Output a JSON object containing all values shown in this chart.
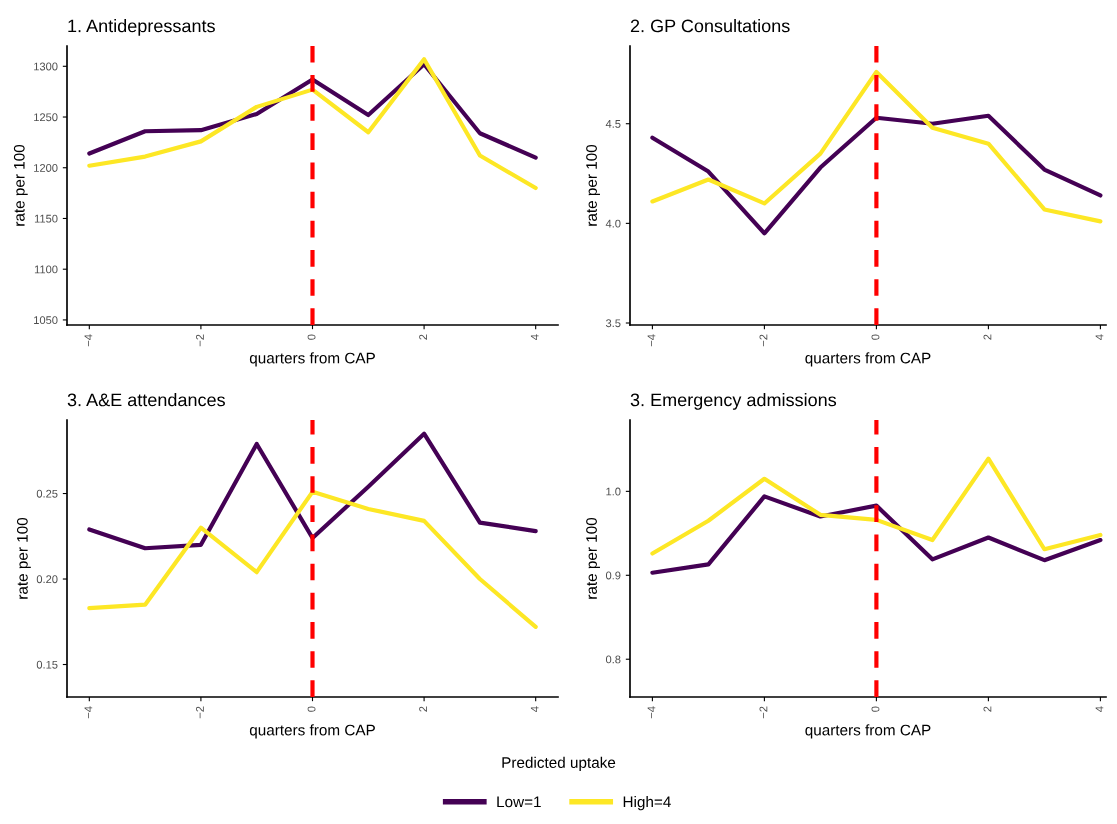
{
  "chart_data": [
    {
      "type": "line",
      "title": "1. Antidepressants",
      "xlabel": "quarters from CAP",
      "ylabel": "rate per 100",
      "x": [
        -4,
        -3,
        -2,
        -1,
        0,
        1,
        2,
        3,
        4
      ],
      "series": [
        {
          "name": "Low=1",
          "color": "#440154",
          "values": [
            1214,
            1236,
            1237,
            1253,
            1287,
            1252,
            1302,
            1234,
            1210
          ]
        },
        {
          "name": "High=4",
          "color": "#fde725",
          "values": [
            1202,
            1211,
            1226,
            1260,
            1277,
            1235,
            1307,
            1212,
            1180
          ]
        }
      ],
      "xlim": [
        -4.4,
        4.4
      ],
      "xticks": [
        -4,
        -2,
        0,
        2,
        4
      ],
      "ylim": [
        1045,
        1320
      ],
      "yticks": [
        1050,
        1100,
        1150,
        1200,
        1250,
        1300
      ],
      "ref_lines": [
        {
          "axis": "x",
          "value": 0,
          "color": "#ff0000",
          "line_style": "dashed"
        }
      ],
      "grid": false,
      "legend": "bottom",
      "legend_title": "Predicted uptake"
    },
    {
      "type": "line",
      "title": "2. GP Consultations",
      "xlabel": "quarters from CAP",
      "ylabel": "rate per 100",
      "x": [
        -4,
        -3,
        -2,
        -1,
        0,
        1,
        2,
        3,
        4
      ],
      "series": [
        {
          "color": "#440154",
          "values": [
            4.43,
            4.26,
            3.95,
            4.28,
            4.53,
            4.5,
            4.54,
            4.27,
            4.14
          ]
        },
        {
          "color": "#fde725",
          "values": [
            4.11,
            4.22,
            4.1,
            4.35,
            4.76,
            4.48,
            4.4,
            4.07,
            4.01
          ]
        }
      ],
      "xlim": [
        -4.4,
        4.1
      ],
      "xticks": [
        -4,
        -2,
        0,
        2,
        4
      ],
      "ylim": [
        3.49,
        4.89
      ],
      "yticks": [
        {
          "value": 3.5,
          "label": "3.5"
        },
        {
          "value": 4,
          "label": "4.0"
        },
        {
          "value": 4.5,
          "label": "4.5"
        }
      ],
      "ref_lines": [
        {
          "axis": "x",
          "value": 0,
          "color": "#ff0000",
          "line_style": "dashed"
        }
      ],
      "grid": false,
      "legend": false
    },
    {
      "type": "line",
      "title": "3. A&E attendances",
      "xlabel": "quarters from CAP",
      "ylabel": "rate per 100",
      "x": [
        -4,
        -3,
        -2,
        -1,
        0,
        1,
        2,
        3,
        4
      ],
      "series": [
        {
          "color": "#440154",
          "values": [
            0.229,
            0.218,
            0.22,
            0.279,
            0.224,
            0.254,
            0.285,
            0.233,
            0.228
          ]
        },
        {
          "color": "#fde725",
          "values": [
            0.183,
            0.185,
            0.23,
            0.204,
            0.251,
            0.241,
            0.234,
            0.2,
            0.172
          ]
        }
      ],
      "xlim": [
        -4.4,
        4.4
      ],
      "xticks": [
        -4,
        -2,
        0,
        2,
        4
      ],
      "ylim": [
        0.131,
        0.293
      ],
      "yticks": [
        {
          "value": 0.15,
          "label": "0.15"
        },
        {
          "value": 0.2,
          "label": "0.20"
        },
        {
          "value": 0.25,
          "label": "0.25"
        }
      ],
      "ref_lines": [
        {
          "axis": "x",
          "value": 0,
          "color": "#ff0000",
          "line_style": "dashed"
        }
      ],
      "grid": false,
      "legend": false
    },
    {
      "type": "line",
      "title": "3. Emergency admissions",
      "xlabel": "quarters from CAP",
      "ylabel": "rate per 100",
      "x": [
        -4,
        -3,
        -2,
        -1,
        0,
        1,
        2,
        3,
        4
      ],
      "series": [
        {
          "color": "#440154",
          "values": [
            0.903,
            0.913,
            0.994,
            0.97,
            0.983,
            0.919,
            0.945,
            0.918,
            0.942
          ]
        },
        {
          "color": "#fde725",
          "values": [
            0.926,
            0.965,
            1.015,
            0.972,
            0.966,
            0.942,
            1.039,
            0.931,
            0.948
          ]
        }
      ],
      "xlim": [
        -4.4,
        4.1
      ],
      "xticks": [
        -4,
        -2,
        0,
        2,
        4
      ],
      "ylim": [
        0.755,
        1.085
      ],
      "yticks": [
        {
          "value": 0.8,
          "label": "0.8"
        },
        {
          "value": 0.9,
          "label": "0.9"
        },
        {
          "value": 1,
          "label": "1.0"
        }
      ],
      "ref_lines": [
        {
          "axis": "x",
          "value": 0,
          "color": "#ff0000",
          "line_style": "dashed"
        }
      ],
      "grid": false
    }
  ]
}
